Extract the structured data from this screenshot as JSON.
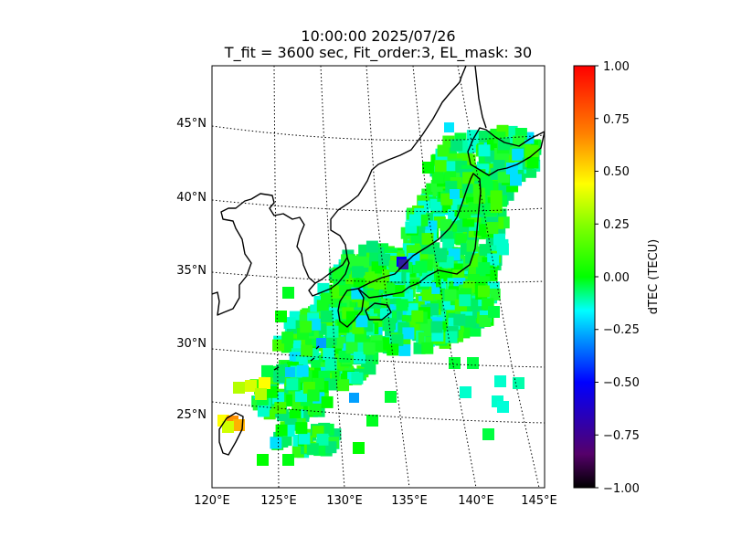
{
  "figure": {
    "title_line1": "10:00:00 2025/07/26",
    "title_line2": "T_fit = 3600 sec, Fit_order:3, EL_mask: 30"
  },
  "map": {
    "lon_range": [
      120,
      145
    ],
    "lat_range": [
      20,
      49
    ],
    "lat_labels": [
      "25°N",
      "30°N",
      "35°N",
      "40°N",
      "45°N"
    ],
    "lon_labels": [
      "120°E",
      "125°E",
      "130°E",
      "135°E",
      "140°E",
      "145°E"
    ],
    "graticule_style": "dotted",
    "coastline_color": "#000000"
  },
  "colorbar": {
    "label": "dTEC (TECU)",
    "range": [
      -1.0,
      1.0
    ],
    "ticks": [
      "1.00",
      "0.75",
      "0.50",
      "0.25",
      "0.00",
      "−0.25",
      "−0.50",
      "−0.75",
      "−1.00"
    ],
    "colors": [
      "#000000",
      "#55006a",
      "#0000ff",
      "#00a0ff",
      "#00ffff",
      "#00ff00",
      "#b4ff00",
      "#ffff00",
      "#ff8000",
      "#ff0000"
    ]
  }
}
